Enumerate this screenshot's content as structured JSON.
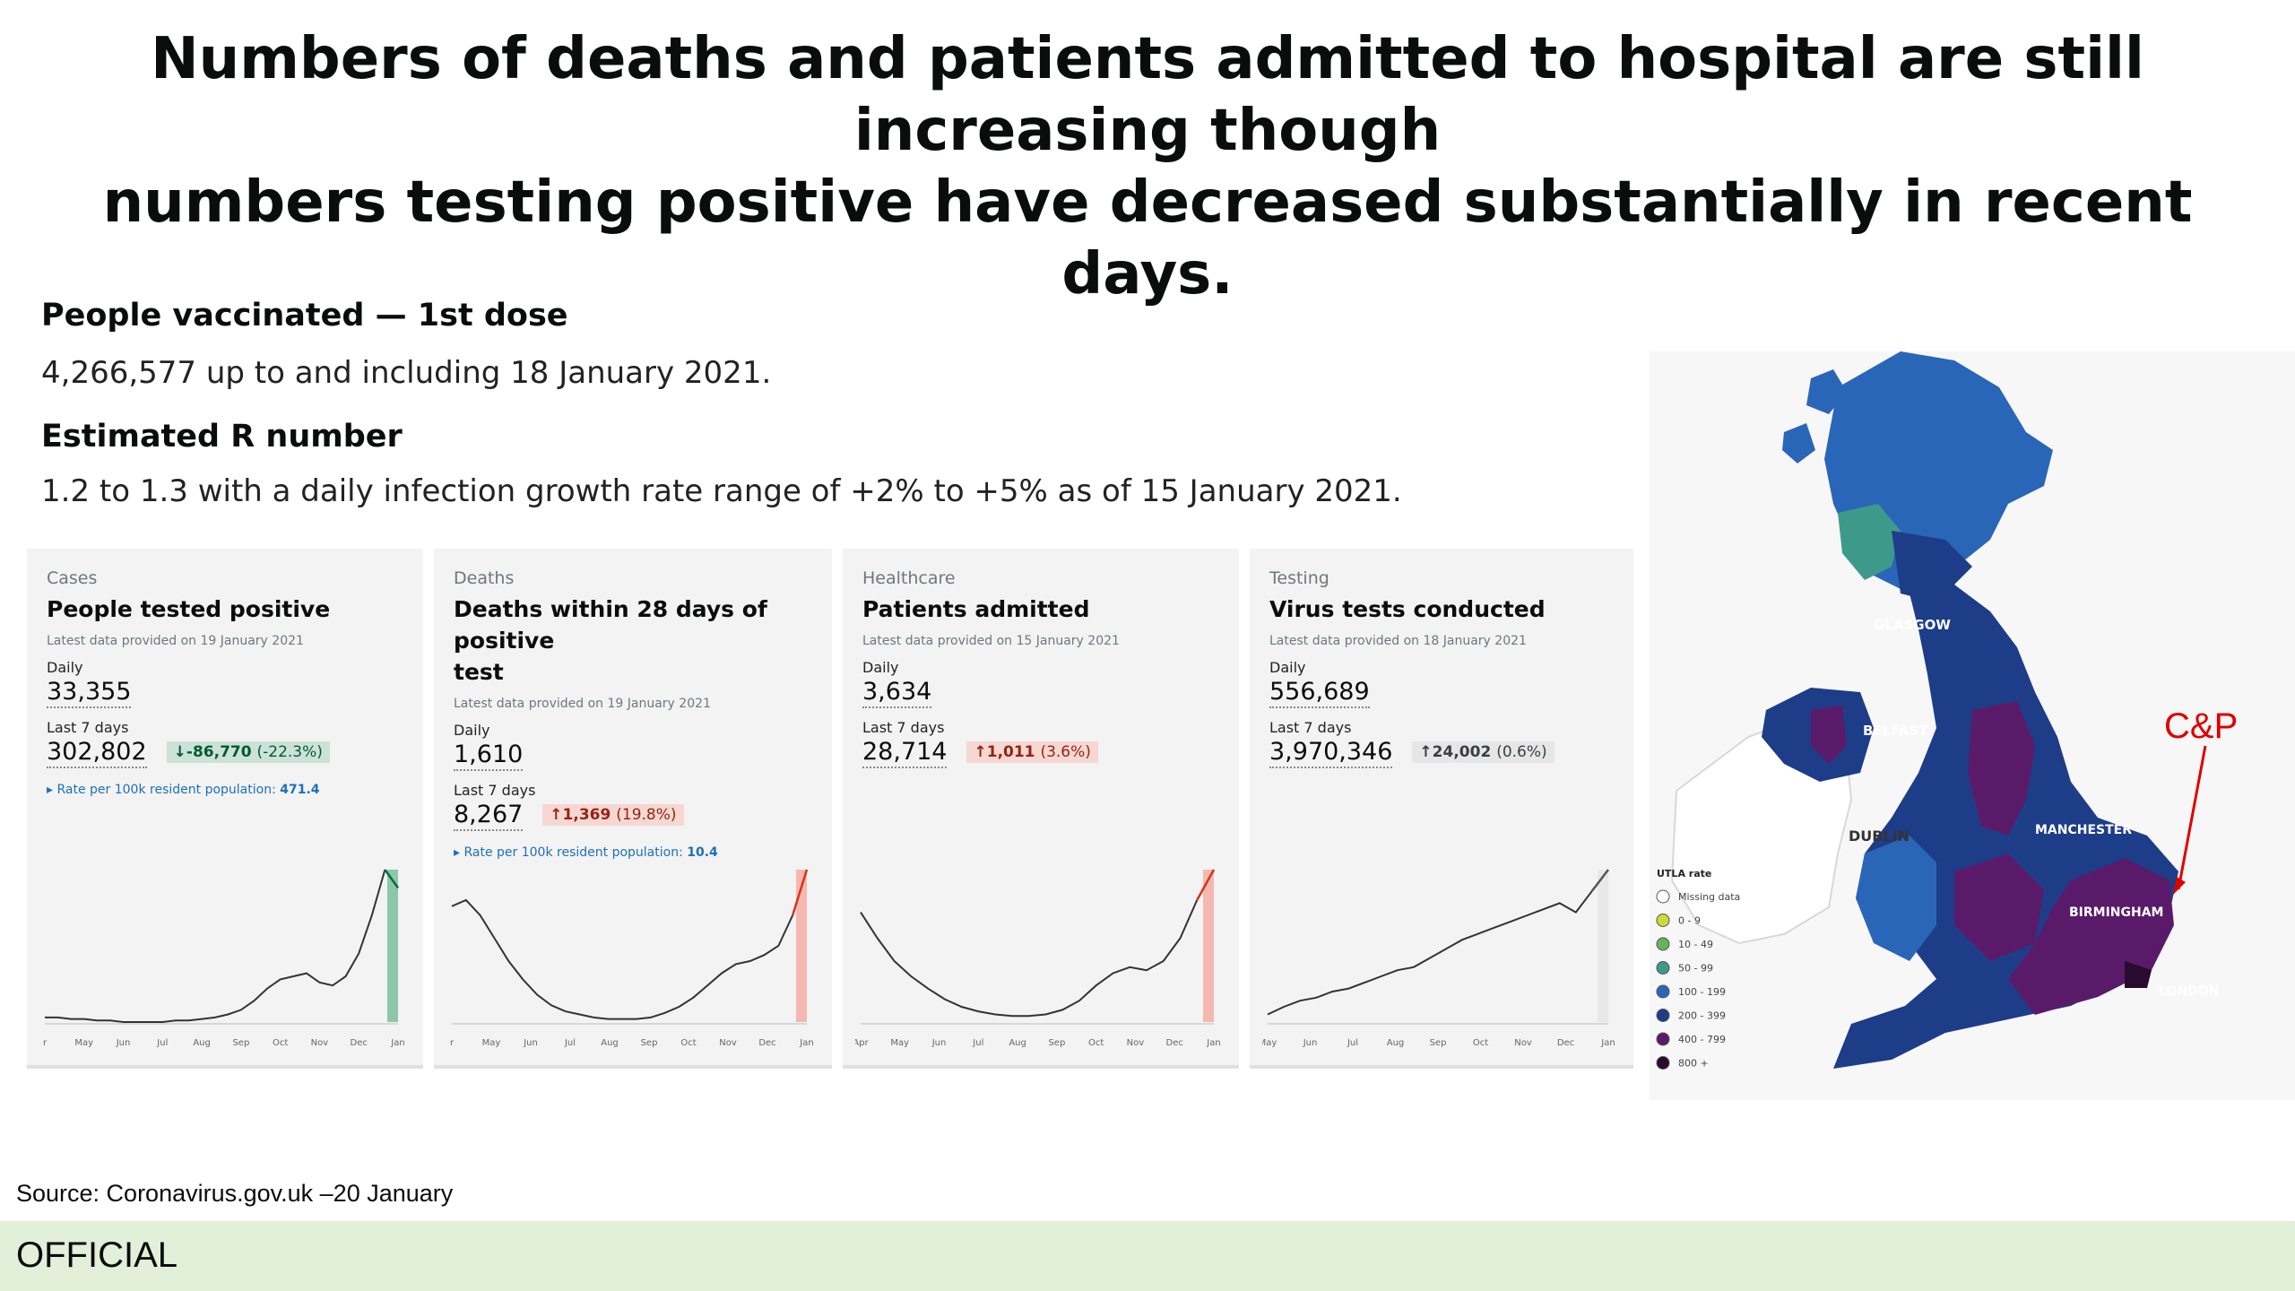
{
  "slide": {
    "title_line1": "Numbers of deaths and patients admitted to hospital are still increasing though",
    "title_line2": "numbers testing positive have decreased substantially in recent days."
  },
  "vaccinated": {
    "heading": "People vaccinated — 1st dose",
    "text": "4,266,577 up to and including 18 January 2021."
  },
  "r_number": {
    "heading": "Estimated R number",
    "text": "1.2 to 1.3 with a daily infection growth rate range of +2% to +5% as of 15 January 2021."
  },
  "cards": [
    {
      "category": "Cases",
      "title": "People tested positive",
      "latest": "Latest data provided on 19 January 2021",
      "daily_label": "Daily",
      "daily": "33,355",
      "week_label": "Last 7 days",
      "week": "302,802",
      "change_arrow": "↓",
      "change": "-86,770",
      "change_pct": "(-22.3%)",
      "rate_label": "Rate per 100k resident population:",
      "rate": "471.4",
      "months": [
        "r",
        "May",
        "Jun",
        "Jul",
        "Aug",
        "Sep",
        "Oct",
        "Nov",
        "Dec",
        "Jan"
      ],
      "line_color": "#333333",
      "hl_color": "#8cc8a8",
      "end_color": "#00703c",
      "series": [
        3,
        3,
        2,
        2,
        1,
        1,
        0,
        0,
        0,
        0,
        1,
        1,
        2,
        3,
        5,
        8,
        14,
        22,
        28,
        30,
        32,
        26,
        24,
        30,
        45,
        70,
        100,
        88
      ]
    },
    {
      "category": "Deaths",
      "title_l1": "Deaths within 28 days of positive",
      "title_l2": "test",
      "latest": "Latest data provided on 19 January 2021",
      "daily_label": "Daily",
      "daily": "1,610",
      "week_label": "Last 7 days",
      "week": "8,267",
      "change_arrow": "↑",
      "change": "1,369",
      "change_pct": "(19.8%)",
      "rate_label": "Rate per 100k resident population:",
      "rate": "10.4",
      "months": [
        "r",
        "May",
        "Jun",
        "Jul",
        "Aug",
        "Sep",
        "Oct",
        "Nov",
        "Dec",
        "Jan"
      ],
      "line_color": "#333333",
      "hl_color": "#f4b8b0",
      "end_color": "#d4351c",
      "series": [
        76,
        80,
        70,
        55,
        40,
        28,
        18,
        11,
        7,
        5,
        3,
        2,
        2,
        2,
        3,
        6,
        10,
        16,
        24,
        32,
        38,
        40,
        44,
        50,
        70,
        100
      ]
    },
    {
      "category": "Healthcare",
      "title": "Patients admitted",
      "latest": "Latest data provided on 15 January 2021",
      "daily_label": "Daily",
      "daily": "3,634",
      "week_label": "Last 7 days",
      "week": "28,714",
      "change_arrow": "↑",
      "change": "1,011",
      "change_pct": "(3.6%)",
      "months": [
        "Apr",
        "May",
        "Jun",
        "Jul",
        "Aug",
        "Sep",
        "Oct",
        "Nov",
        "Dec",
        "Jan"
      ],
      "line_color": "#333333",
      "hl_color": "#f4b8b0",
      "end_color": "#d4351c",
      "series": [
        72,
        55,
        40,
        30,
        22,
        15,
        10,
        7,
        5,
        4,
        4,
        5,
        8,
        14,
        24,
        32,
        36,
        34,
        40,
        55,
        80,
        100
      ]
    },
    {
      "category": "Testing",
      "title": "Virus tests conducted",
      "latest": "Latest data provided on 18 January 2021",
      "daily_label": "Daily",
      "daily": "556,689",
      "week_label": "Last 7 days",
      "week": "3,970,346",
      "change_arrow": "↑",
      "change": "24,002",
      "change_pct": "(0.6%)",
      "months": [
        "May",
        "Jun",
        "Jul",
        "Aug",
        "Sep",
        "Oct",
        "Nov",
        "Dec",
        "Jan"
      ],
      "line_color": "#333333",
      "hl_color": "#e8e8e8",
      "end_color": "#555555",
      "series": [
        5,
        10,
        14,
        16,
        20,
        22,
        26,
        30,
        34,
        36,
        42,
        48,
        54,
        58,
        62,
        66,
        70,
        74,
        78,
        72,
        86,
        100
      ]
    }
  ],
  "map": {
    "cities": [
      "GLASGOW",
      "BELFAST",
      "DUBLIN",
      "MANCHESTER",
      "BIRMINGHAM",
      "LONDON"
    ],
    "legend_title": "UTLA rate",
    "legend": [
      {
        "label": "Missing data",
        "color": "#ffffff"
      },
      {
        "label": "0 - 9",
        "color": "#d0d83a"
      },
      {
        "label": "10 - 49",
        "color": "#66b35c"
      },
      {
        "label": "50 - 99",
        "color": "#3d9a8b"
      },
      {
        "label": "100 - 199",
        "color": "#2a66b8"
      },
      {
        "label": "200 - 399",
        "color": "#1e3d88"
      },
      {
        "label": "400 - 799",
        "color": "#5a1a6a"
      },
      {
        "label": "800 +",
        "color": "#2a0a2e"
      }
    ],
    "annotation": "C&P"
  },
  "source": "Source:  Coronavirus.gov.uk –20 January",
  "footer": "OFFICIAL"
}
